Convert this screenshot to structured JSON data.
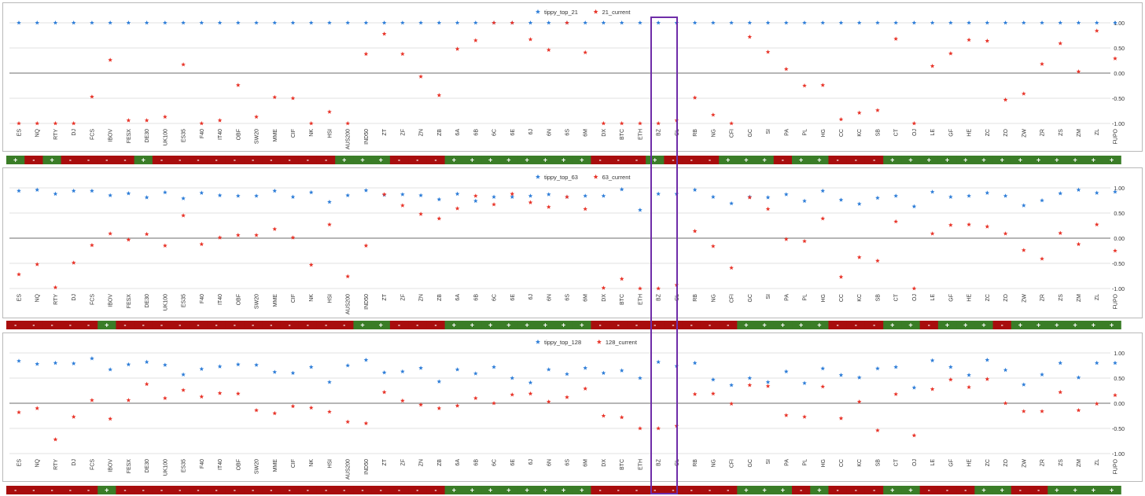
{
  "categories": [
    "ES",
    "NQ",
    "RTY",
    "DJ",
    "FCS",
    "IBOV",
    "FESX",
    "DE30",
    "UK100",
    "ES35",
    "F40",
    "IT40",
    "OBF",
    "SW20",
    "MME",
    "CIF",
    "NK",
    "HSI",
    "AUS200",
    "IND50",
    "ZT",
    "ZF",
    "ZN",
    "ZB",
    "6A",
    "6B",
    "6C",
    "6E",
    "6J",
    "6N",
    "6S",
    "6M",
    "DX",
    "BTC",
    "ETH",
    "BZ",
    "CL",
    "RB",
    "NG",
    "CFI",
    "GC",
    "SI",
    "PA",
    "PL",
    "HG",
    "CC",
    "KC",
    "SB",
    "CT",
    "OJ",
    "LE",
    "GF",
    "HE",
    "ZC",
    "ZO",
    "ZW",
    "ZR",
    "ZS",
    "ZM",
    "ZL",
    "FUPO"
  ],
  "colors": {
    "tippy": "#2f7ed8",
    "current": "#e8352a",
    "positive": "#3a7d27",
    "negative": "#a80d0d",
    "highlight": "#6f2da8"
  },
  "chart_data": [
    {
      "type": "scatter",
      "ylim": [
        -1.1,
        1.1
      ],
      "yticks": [
        "1.00",
        "0.50",
        "0.00",
        "-0.50",
        "-1.00"
      ],
      "legend_position": "top-center",
      "series": [
        {
          "name": "tippy_top_21",
          "marker": "star",
          "color": "#2f7ed8",
          "values": [
            1,
            1,
            1,
            1,
            1,
            1,
            1,
            1,
            1,
            1,
            1,
            1,
            1,
            1,
            1,
            1,
            1,
            1,
            1,
            1,
            1,
            1,
            1,
            1,
            1,
            1,
            1,
            1,
            1,
            1,
            1,
            1,
            1,
            1,
            1,
            1,
            1,
            1,
            1,
            1,
            1,
            1,
            1,
            1,
            1,
            1,
            1,
            1,
            1,
            1,
            1,
            1,
            1,
            1,
            1,
            1,
            1,
            1,
            1,
            1,
            1
          ]
        },
        {
          "name": "21_current",
          "marker": "star",
          "color": "#e8352a",
          "values": [
            -1,
            -1,
            -1,
            -1,
            -0.47,
            0.26,
            -0.94,
            -0.94,
            -0.87,
            0.17,
            -1,
            -0.94,
            -0.24,
            -0.87,
            -0.48,
            -0.5,
            -1,
            -0.77,
            -1,
            0.38,
            0.78,
            0.38,
            -0.07,
            -0.44,
            0.48,
            0.65,
            1,
            1,
            0.67,
            0.46,
            1,
            0.41,
            -1,
            -1,
            -1,
            -1,
            -0.94,
            -0.49,
            -0.83,
            -1,
            0.72,
            0.42,
            0.08,
            -0.25,
            -0.24,
            -0.92,
            -0.79,
            -0.74,
            0.68,
            -1,
            0.14,
            0.39,
            0.66,
            0.64,
            -0.53,
            -0.41,
            0.18,
            0.59,
            0.03,
            0.84,
            0.29
          ]
        }
      ],
      "strip": [
        "+",
        "-",
        "+",
        "-",
        "-",
        "-",
        "-",
        "+",
        "-",
        "-",
        "-",
        "-",
        "-",
        "-",
        "-",
        "-",
        "-",
        "-",
        "+",
        "+",
        "+",
        "-",
        "-",
        "-",
        "+",
        "+",
        "+",
        "+",
        "+",
        "+",
        "+",
        "+",
        "-",
        "-",
        "-",
        "+",
        "-",
        "-",
        "-",
        "+",
        "+",
        "+",
        "-",
        "+",
        "+",
        "-",
        "-",
        "-",
        "+",
        "+",
        "+",
        "+",
        "+",
        "+",
        "+",
        "+",
        "+",
        "+",
        "+",
        "+",
        "+"
      ]
    },
    {
      "type": "scatter",
      "ylim": [
        -1.1,
        1.1
      ],
      "yticks": [
        "1.00",
        "0.50",
        "0.00",
        "-0.50",
        "-1.00"
      ],
      "legend_position": "top-center",
      "series": [
        {
          "name": "tippy_top_63",
          "marker": "star",
          "color": "#2f7ed8",
          "values": [
            0.94,
            0.96,
            0.88,
            0.94,
            0.94,
            0.85,
            0.89,
            0.81,
            0.91,
            0.79,
            0.9,
            0.85,
            0.84,
            0.84,
            0.94,
            0.82,
            0.91,
            0.72,
            0.85,
            0.95,
            0.86,
            0.87,
            0.85,
            0.77,
            0.88,
            0.74,
            0.82,
            0.82,
            0.84,
            0.87,
            0.82,
            0.84,
            0.84,
            0.97,
            0.56,
            0.88,
            0.88,
            0.96,
            0.82,
            0.69,
            0.82,
            0.81,
            0.87,
            0.74,
            0.94,
            0.76,
            0.68,
            0.8,
            0.84,
            0.63,
            0.92,
            0.82,
            0.84,
            0.9,
            0.84,
            0.65,
            0.75,
            0.89,
            0.96,
            0.9,
            0.92
          ]
        },
        {
          "name": "63_current",
          "marker": "star",
          "color": "#e8352a",
          "values": [
            -0.72,
            -0.52,
            -0.98,
            -0.49,
            -0.14,
            0.09,
            -0.03,
            0.08,
            -0.15,
            0.45,
            -0.12,
            0.01,
            0.06,
            0.06,
            0.18,
            0.01,
            -0.53,
            0.27,
            -0.76,
            -0.15,
            0.87,
            0.65,
            0.48,
            0.39,
            0.59,
            0.84,
            0.67,
            0.88,
            0.71,
            0.62,
            0.82,
            0.58,
            -0.99,
            -0.81,
            -1,
            -1,
            -0.93,
            0.14,
            -0.16,
            -0.59,
            0.81,
            0.58,
            -0.02,
            -0.06,
            0.39,
            -0.77,
            -0.38,
            -0.45,
            0.33,
            -1,
            0.09,
            0.26,
            0.27,
            0.23,
            0.09,
            -0.24,
            -0.41,
            0.1,
            -0.12,
            0.27,
            -0.25
          ]
        }
      ],
      "strip": [
        "-",
        "-",
        "-",
        "-",
        "-",
        "+",
        "-",
        "-",
        "-",
        "-",
        "-",
        "-",
        "-",
        "-",
        "-",
        "-",
        "-",
        "-",
        "-",
        "+",
        "+",
        "-",
        "-",
        "-",
        "+",
        "+",
        "+",
        "+",
        "+",
        "+",
        "+",
        "+",
        "-",
        "-",
        "-",
        "-",
        "-",
        "-",
        "-",
        "-",
        "+",
        "+",
        "+",
        "+",
        "+",
        "-",
        "-",
        "-",
        "+",
        "+",
        "-",
        "+",
        "+",
        "+",
        "-",
        "+",
        "+",
        "+",
        "+",
        "+",
        "+"
      ]
    },
    {
      "type": "scatter",
      "ylim": [
        -1.1,
        1.1
      ],
      "yticks": [
        "1.00",
        "0.50",
        "0.00",
        "-0.50",
        "-1.00"
      ],
      "legend_position": "top-center",
      "series": [
        {
          "name": "tippy_top_128",
          "marker": "star",
          "color": "#2f7ed8",
          "values": [
            0.84,
            0.78,
            0.8,
            0.79,
            0.89,
            0.67,
            0.77,
            0.82,
            0.76,
            0.57,
            0.68,
            0.73,
            0.77,
            0.76,
            0.62,
            0.6,
            0.72,
            0.42,
            0.75,
            0.86,
            0.61,
            0.63,
            0.7,
            0.43,
            0.67,
            0.59,
            0.72,
            0.5,
            0.41,
            0.67,
            0.58,
            0.7,
            0.6,
            0.65,
            0.5,
            0.82,
            0.74,
            0.8,
            0.47,
            0.36,
            0.5,
            0.42,
            0.63,
            0.4,
            0.69,
            0.56,
            0.51,
            0.69,
            0.72,
            0.31,
            0.85,
            0.72,
            0.56,
            0.86,
            0.66,
            0.37,
            0.57,
            0.8,
            0.51,
            0.8,
            0.8
          ]
        },
        {
          "name": "128_current",
          "marker": "star",
          "color": "#e8352a",
          "values": [
            -0.18,
            -0.1,
            -0.72,
            -0.27,
            0.06,
            -0.31,
            0.06,
            0.38,
            0.1,
            0.26,
            0.13,
            0.2,
            0.19,
            -0.14,
            -0.2,
            -0.06,
            -0.09,
            -0.17,
            -0.37,
            -0.4,
            0.22,
            0.05,
            -0.03,
            -0.1,
            -0.05,
            0.1,
            0,
            0.17,
            0.19,
            0.03,
            0.12,
            0.29,
            -0.25,
            -0.28,
            -0.5,
            -0.5,
            -0.45,
            0.18,
            0.19,
            -0.01,
            0.36,
            0.34,
            -0.24,
            -0.27,
            0.33,
            -0.3,
            0.03,
            -0.54,
            0.18,
            -0.64,
            0.28,
            0.47,
            0.32,
            0.48,
            0,
            -0.16,
            -0.16,
            0.22,
            -0.14,
            -0.01,
            0.16
          ]
        }
      ],
      "strip": [
        "-",
        "-",
        "-",
        "-",
        "-",
        "+",
        "-",
        "-",
        "-",
        "-",
        "-",
        "-",
        "-",
        "-",
        "-",
        "-",
        "-",
        "-",
        "-",
        "-",
        "-",
        "-",
        "-",
        "-",
        "+",
        "+",
        "+",
        "+",
        "+",
        "+",
        "+",
        "+",
        "-",
        "-",
        "-",
        "-",
        "-",
        "-",
        "-",
        "-",
        "+",
        "+",
        "+",
        "-",
        "+",
        "-",
        "-",
        "-",
        "+",
        "+",
        "-",
        "-",
        "-",
        "+",
        "+",
        "-",
        "-",
        "+",
        "+",
        "+",
        "+"
      ]
    }
  ]
}
